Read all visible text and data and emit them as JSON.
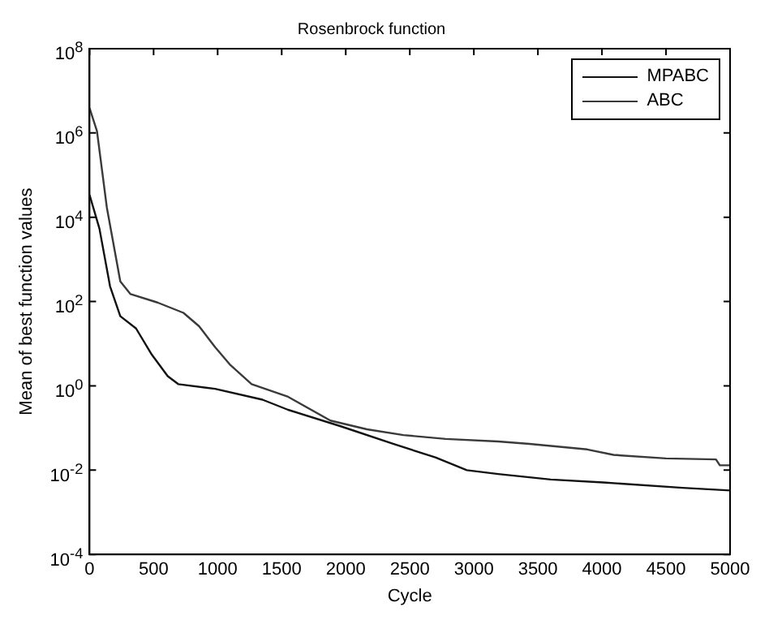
{
  "chart_data": {
    "type": "line",
    "title": "Rosenbrock function",
    "xlabel": "Cycle",
    "ylabel": "Mean of best function values",
    "log": "y",
    "grid": false,
    "legend": "top right",
    "marker": "none",
    "line_style": "solid",
    "xlim": [
      0,
      5000
    ],
    "xticks": [
      0,
      500,
      1000,
      1500,
      2000,
      2500,
      3000,
      3500,
      4000,
      4500,
      5000
    ],
    "ylim": [
      0.0001,
      100000000
    ],
    "yticks": [
      {
        "value": 0.0001,
        "label": "10$^{-4}$"
      },
      {
        "value": 0.01,
        "label": "10$^{-2}$"
      },
      {
        "value": 1,
        "label": "10$^{0}$"
      },
      {
        "value": 100,
        "label": "10$^{2}$"
      },
      {
        "value": 10000,
        "label": "10$^{4}$"
      },
      {
        "value": 1000000,
        "label": "10$^{6}$"
      },
      {
        "value": 100000000,
        "label": "10$^{8}$"
      }
    ],
    "series": [
      {
        "name": "MPABC",
        "color": "#111111",
        "x": [
          0,
          77,
          160,
          240,
          363,
          486,
          610,
          692,
          980,
          1350,
          1550,
          1960,
          2370,
          2700,
          2945,
          3190,
          3600,
          4010,
          4630,
          5000
        ],
        "values": [
          34000,
          5400,
          230,
          45,
          23,
          5.5,
          1.7,
          1.1,
          0.85,
          0.47,
          0.27,
          0.11,
          0.042,
          0.02,
          0.01,
          0.0081,
          0.006,
          0.0051,
          0.0038,
          0.0033
        ]
      },
      {
        "name": "ABC",
        "color": "#3a3a3a",
        "x": [
          0,
          58,
          135,
          240,
          320,
          530,
          733,
          855,
          980,
          1100,
          1265,
          1550,
          1880,
          2165,
          2450,
          2780,
          3190,
          3435,
          3885,
          4090,
          4500,
          4890,
          4920,
          5000
        ],
        "values": [
          3900000,
          1100000,
          17000,
          300,
          150,
          95,
          54,
          26,
          8.3,
          3.1,
          1.1,
          0.55,
          0.15,
          0.093,
          0.068,
          0.055,
          0.048,
          0.042,
          0.031,
          0.023,
          0.019,
          0.018,
          0.013,
          0.013
        ]
      }
    ]
  }
}
